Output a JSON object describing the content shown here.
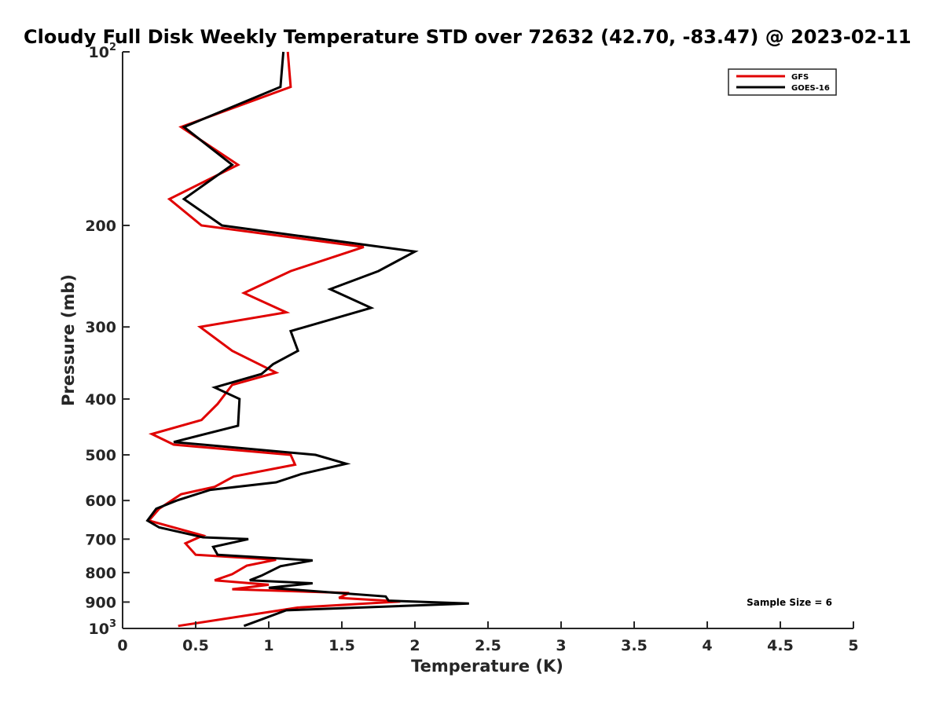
{
  "chart_data": {
    "type": "line",
    "title": "Cloudy Full Disk Weekly Temperature STD over 72632 (42.70, -83.47) @ 2023-02-11",
    "xlabel": "Temperature (K)",
    "ylabel": "Pressure (mb)",
    "xlim": [
      0,
      5
    ],
    "ylim": [
      100,
      1000
    ],
    "y_scale": "log",
    "y_reversed": true,
    "grid": false,
    "legend_position": "top-right",
    "x_ticks": [
      "0",
      "0.5",
      "1",
      "1.5",
      "2",
      "2.5",
      "3",
      "3.5",
      "4",
      "4.5",
      "5"
    ],
    "x_tick_values": [
      0,
      0.5,
      1,
      1.5,
      2,
      2.5,
      3,
      3.5,
      4,
      4.5,
      5
    ],
    "y_ticks": [
      {
        "value": 100,
        "base": "10",
        "exp": "2",
        "label": ""
      },
      {
        "value": 200,
        "label": "200"
      },
      {
        "value": 300,
        "label": "300"
      },
      {
        "value": 400,
        "label": "400"
      },
      {
        "value": 500,
        "label": "500"
      },
      {
        "value": 600,
        "label": "600"
      },
      {
        "value": 700,
        "label": "700"
      },
      {
        "value": 800,
        "label": "800"
      },
      {
        "value": 900,
        "label": "900"
      },
      {
        "value": 1000,
        "base": "10",
        "exp": "3",
        "label": ""
      }
    ],
    "annotation": "Sample Size = 6",
    "series": [
      {
        "name": "GFS",
        "color": "#e00000",
        "points": [
          [
            1.13,
            100
          ],
          [
            1.15,
            115
          ],
          [
            0.4,
            135
          ],
          [
            0.79,
            157
          ],
          [
            0.32,
            180
          ],
          [
            0.54,
            200
          ],
          [
            1.65,
            218
          ],
          [
            1.15,
            240
          ],
          [
            0.83,
            262
          ],
          [
            1.12,
            283
          ],
          [
            0.53,
            300
          ],
          [
            0.75,
            330
          ],
          [
            1.05,
            360
          ],
          [
            0.75,
            378
          ],
          [
            0.65,
            408
          ],
          [
            0.54,
            435
          ],
          [
            0.2,
            460
          ],
          [
            0.35,
            480
          ],
          [
            1.15,
            500
          ],
          [
            1.18,
            520
          ],
          [
            0.76,
            545
          ],
          [
            0.63,
            568
          ],
          [
            0.4,
            585
          ],
          [
            0.25,
            620
          ],
          [
            0.18,
            650
          ],
          [
            0.55,
            690
          ],
          [
            0.43,
            712
          ],
          [
            0.5,
            745
          ],
          [
            1.05,
            760
          ],
          [
            0.85,
            778
          ],
          [
            0.75,
            805
          ],
          [
            0.63,
            825
          ],
          [
            1.0,
            840
          ],
          [
            0.75,
            855
          ],
          [
            1.55,
            868
          ],
          [
            1.48,
            885
          ],
          [
            1.9,
            898
          ],
          [
            1.2,
            920
          ],
          [
            0.38,
            990
          ]
        ]
      },
      {
        "name": "GOES-16",
        "color": "#000000",
        "points": [
          [
            1.1,
            100
          ],
          [
            1.08,
            115
          ],
          [
            0.42,
            135
          ],
          [
            0.75,
            157
          ],
          [
            0.42,
            180
          ],
          [
            0.68,
            200
          ],
          [
            2.0,
            222
          ],
          [
            1.75,
            240
          ],
          [
            1.42,
            258
          ],
          [
            1.7,
            278
          ],
          [
            1.15,
            305
          ],
          [
            1.2,
            330
          ],
          [
            1.03,
            348
          ],
          [
            0.95,
            362
          ],
          [
            0.63,
            382
          ],
          [
            0.8,
            400
          ],
          [
            0.79,
            445
          ],
          [
            0.35,
            475
          ],
          [
            1.32,
            500
          ],
          [
            1.53,
            518
          ],
          [
            1.22,
            540
          ],
          [
            1.05,
            558
          ],
          [
            0.6,
            575
          ],
          [
            0.37,
            600
          ],
          [
            0.23,
            620
          ],
          [
            0.17,
            650
          ],
          [
            0.25,
            668
          ],
          [
            0.55,
            695
          ],
          [
            0.86,
            700
          ],
          [
            0.62,
            722
          ],
          [
            0.65,
            745
          ],
          [
            1.3,
            762
          ],
          [
            1.08,
            780
          ],
          [
            0.95,
            810
          ],
          [
            0.87,
            825
          ],
          [
            1.3,
            835
          ],
          [
            1.0,
            850
          ],
          [
            1.8,
            880
          ],
          [
            1.82,
            895
          ],
          [
            2.37,
            905
          ],
          [
            1.12,
            930
          ],
          [
            0.83,
            990
          ]
        ]
      }
    ]
  }
}
